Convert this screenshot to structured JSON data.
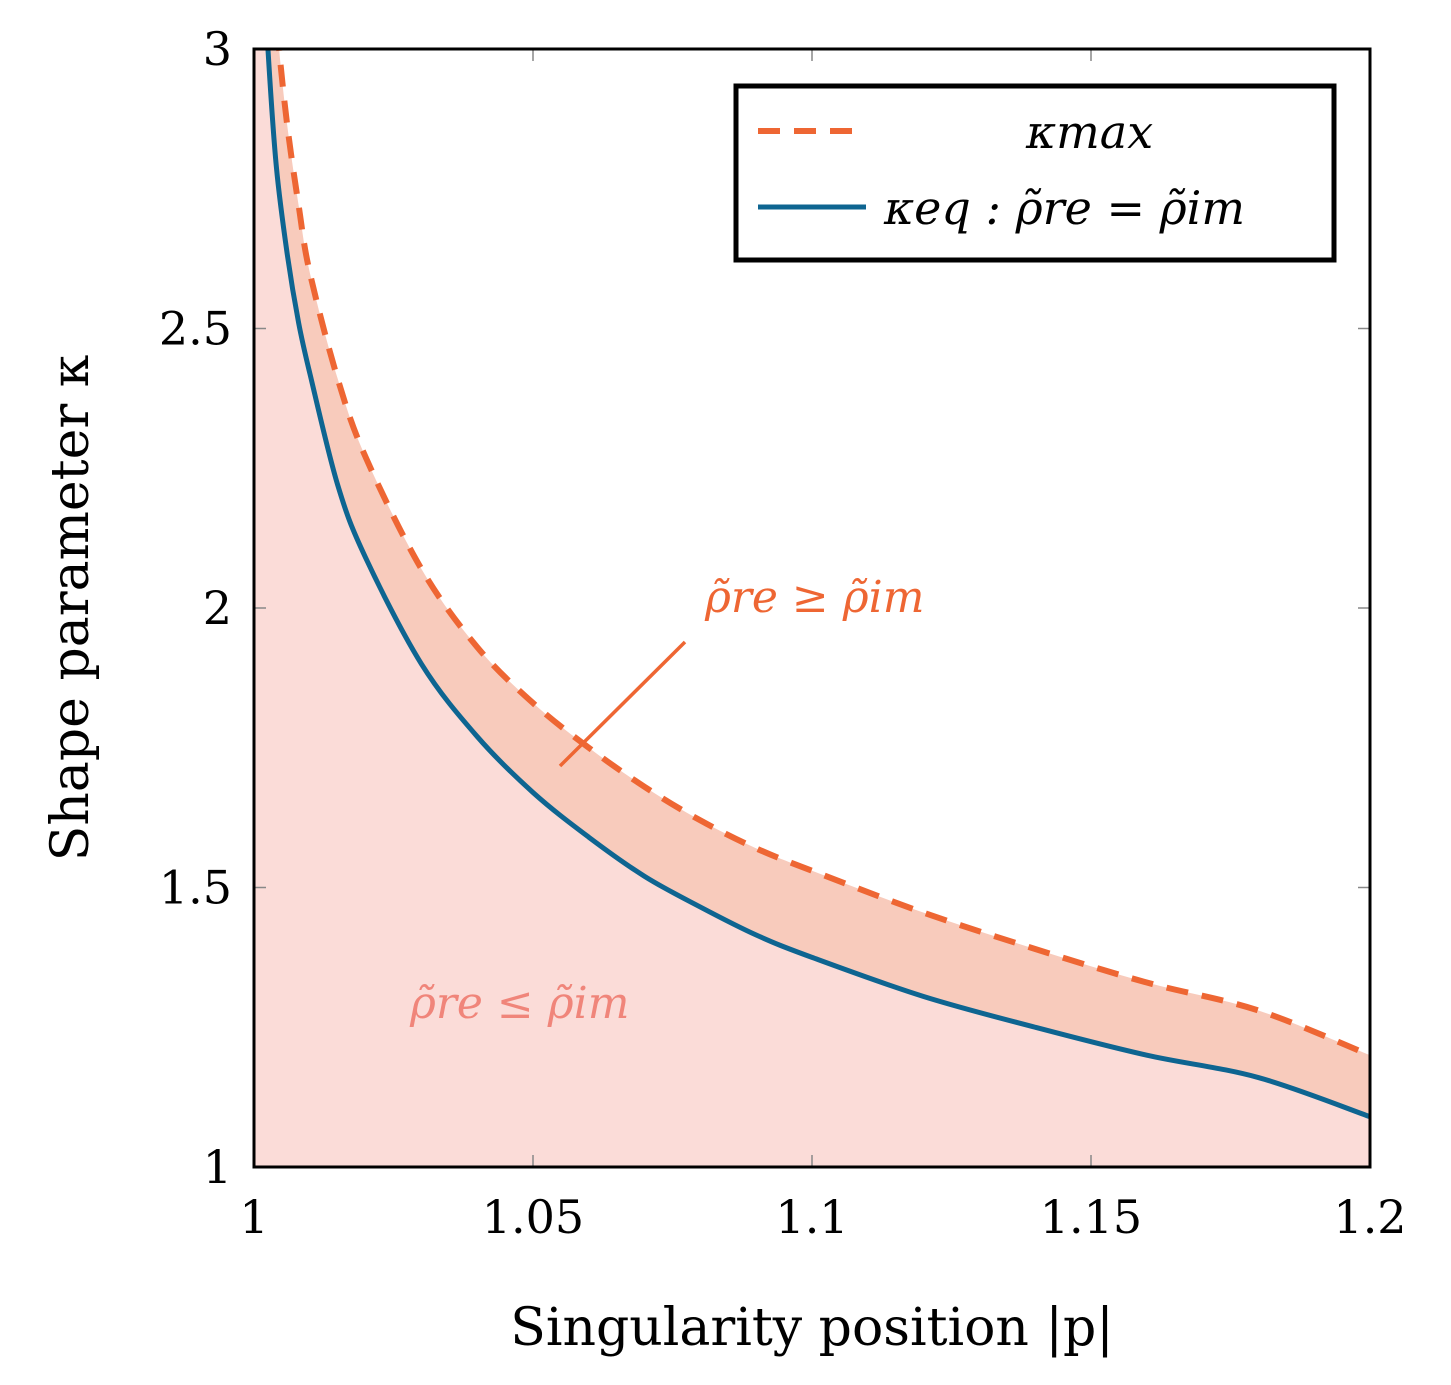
{
  "chart_data": {
    "type": "line",
    "xlabel": "Singularity position |p|",
    "ylabel": "Shape parameter κ",
    "xlim": [
      1,
      1.2
    ],
    "ylim": [
      1,
      3
    ],
    "x_ticks": [
      "1",
      "1.05",
      "1.1",
      "1.15",
      "1.2"
    ],
    "y_ticks": [
      "1",
      "1.5",
      "2",
      "2.5",
      "3"
    ],
    "grid": false,
    "legend_position": "top-right",
    "series": [
      {
        "name": "κmax",
        "style": "dashed",
        "color": "#ee6633",
        "x": [
          1.0045,
          1.006,
          1.008,
          1.01,
          1.015,
          1.02,
          1.03,
          1.04,
          1.05,
          1.06,
          1.07,
          1.08,
          1.09,
          1.1,
          1.12,
          1.14,
          1.16,
          1.18,
          1.2
        ],
        "y": [
          3.0,
          2.86,
          2.72,
          2.6,
          2.41,
          2.27,
          2.07,
          1.93,
          1.83,
          1.75,
          1.68,
          1.62,
          1.57,
          1.53,
          1.455,
          1.39,
          1.33,
          1.28,
          1.2
        ]
      },
      {
        "name": "κeq : ρ̃re = ρ̃im",
        "style": "solid",
        "color": "#0e6591",
        "x": [
          1.0025,
          1.004,
          1.006,
          1.008,
          1.01,
          1.015,
          1.02,
          1.03,
          1.04,
          1.05,
          1.06,
          1.07,
          1.08,
          1.09,
          1.1,
          1.12,
          1.14,
          1.16,
          1.18,
          1.2
        ],
        "y": [
          3.0,
          2.79,
          2.63,
          2.51,
          2.42,
          2.22,
          2.09,
          1.9,
          1.77,
          1.67,
          1.59,
          1.52,
          1.465,
          1.415,
          1.375,
          1.305,
          1.25,
          1.2,
          1.16,
          1.09
        ]
      }
    ],
    "regions": [
      {
        "label": "ρ̃re ≥ ρ̃im",
        "between": [
          "κeq : ρ̃re = ρ̃im",
          "κmax"
        ],
        "color": "#f8cbbc"
      },
      {
        "label": "ρ̃re ≤ ρ̃im",
        "below": "κeq : ρ̃re = ρ̃im",
        "color": "#fbdcd8"
      }
    ],
    "annotations": [
      {
        "text": "ρ̃re ≥ ρ̃im",
        "color": "#ee6633",
        "at": [
          1.055,
          1.72
        ]
      },
      {
        "text": "ρ̃re ≤ ρ̃im",
        "color": "#f0857a",
        "at": [
          1.05,
          1.29
        ]
      }
    ]
  }
}
